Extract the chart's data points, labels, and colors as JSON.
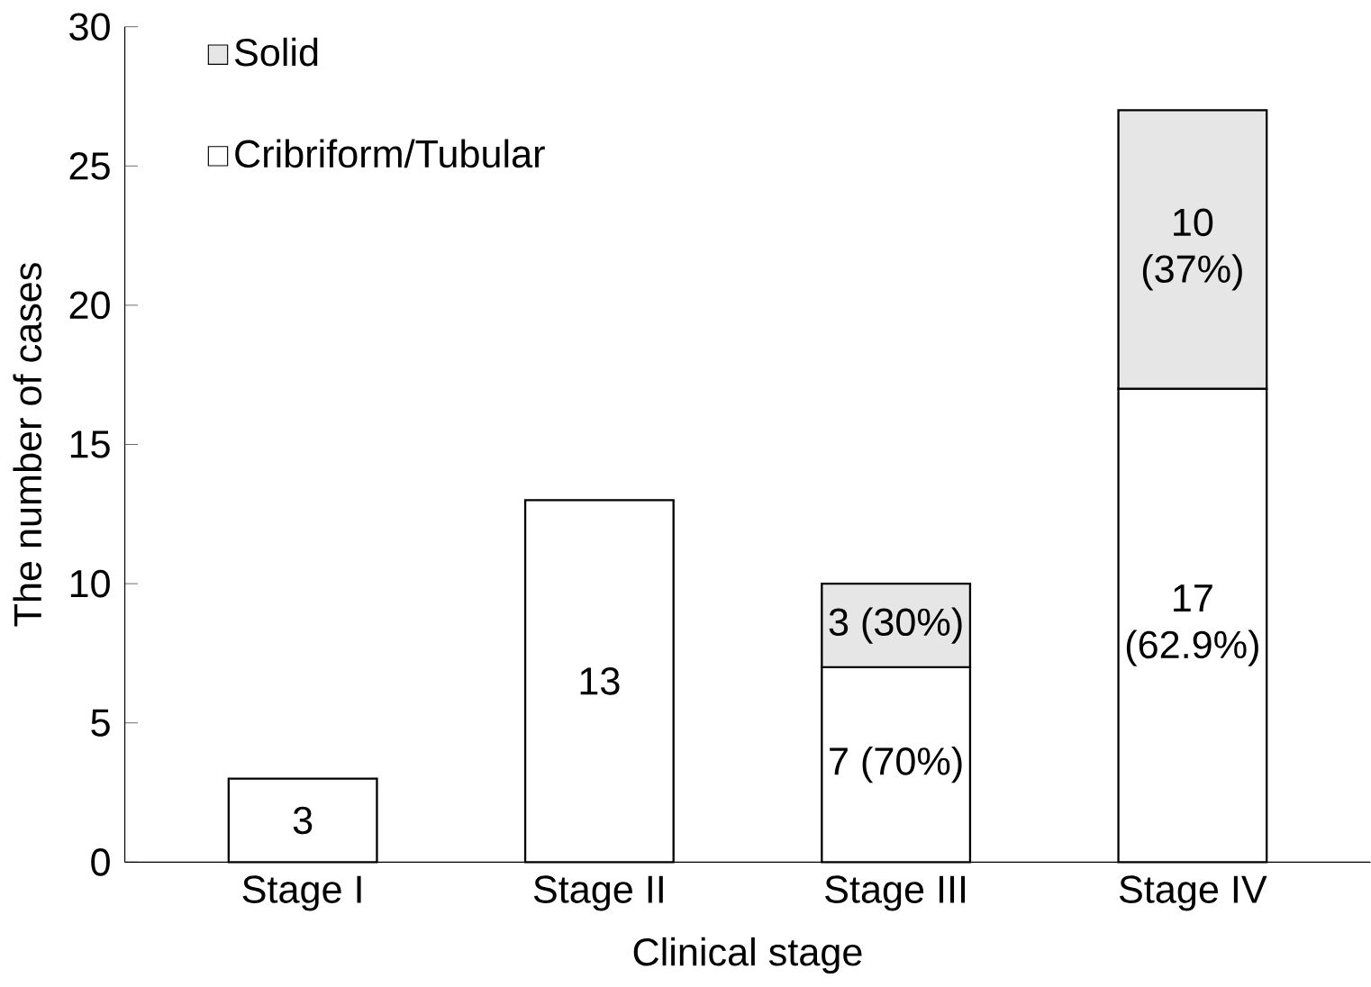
{
  "chart_data": {
    "type": "bar",
    "stacked": true,
    "xlabel": "Clinical stage",
    "ylabel": "The number of cases",
    "categories": [
      "Stage I",
      "Stage II",
      "Stage III",
      "Stage IV"
    ],
    "series": [
      {
        "name": "Cribriform/Tubular",
        "color": "#ffffff",
        "values": [
          3,
          13,
          7,
          17
        ],
        "value_labels": [
          "3",
          "13",
          "7 (70%)",
          "17 (62.9%)"
        ]
      },
      {
        "name": "Solid",
        "color": "#e6e6e6",
        "values": [
          null,
          null,
          3,
          10
        ],
        "value_labels": [
          null,
          null,
          "3 (30%)",
          "10 (37%)"
        ]
      }
    ],
    "ylim": [
      0,
      30
    ],
    "yticks": [
      0,
      5,
      10,
      15,
      20,
      25,
      30
    ],
    "legend": "top left",
    "grid": false
  }
}
